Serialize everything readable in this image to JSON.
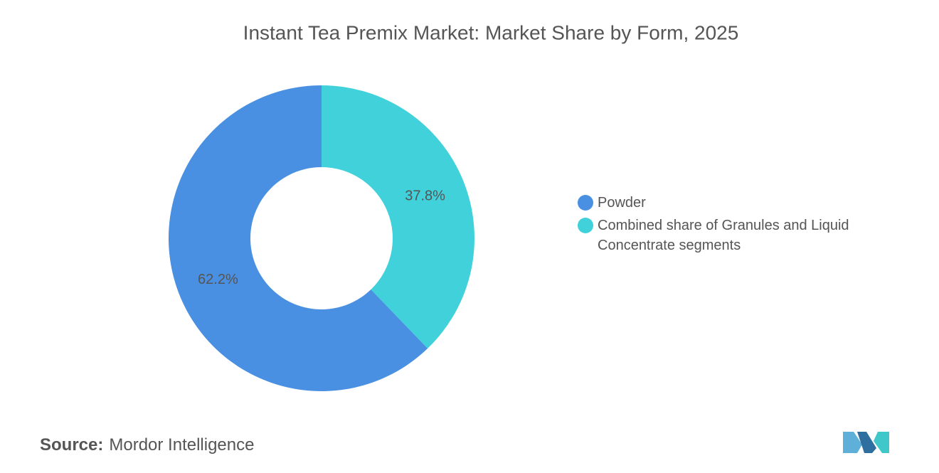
{
  "chart_data": {
    "type": "donut",
    "title": "Instant Tea Premix Market: Market Share by Form, 2025",
    "categories": [
      "Powder",
      "Combined share of Granules and Liquid Concentrate segments"
    ],
    "values": [
      62.2,
      37.8
    ],
    "value_labels": [
      "62.2%",
      "37.8%"
    ],
    "colors": [
      "#4a90e2",
      "#40d1da"
    ],
    "source_label": "Source:",
    "source": "Mordor Intelligence"
  }
}
